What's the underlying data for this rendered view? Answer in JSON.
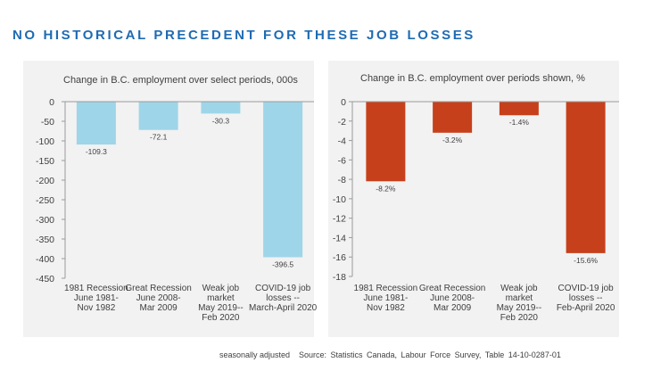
{
  "slide_title": "NO HISTORICAL PRECEDENT FOR THESE JOB LOSSES",
  "footer": {
    "note": "seasonally  adjusted",
    "source": "Source: Statistics Canada, Labour Force Survey, Table 14-10-0287-01"
  },
  "chart_data": [
    {
      "type": "bar",
      "title": "Change in B.C. employment over select periods, 000s",
      "categories": [
        [
          "1981 Recession",
          "June 1981-",
          "Nov 1982"
        ],
        [
          "Great Recession",
          "June 2008-",
          "Mar 2009"
        ],
        [
          "Weak job",
          "market",
          "May 2019--",
          "Feb 2020"
        ],
        [
          "COVID-19 job",
          "losses --",
          "March-April 2020"
        ]
      ],
      "values": [
        -109.3,
        -72.1,
        -30.3,
        -396.5
      ],
      "data_labels": [
        "-109.3",
        "-72.1",
        "-30.3",
        "-396.5"
      ],
      "ylim": [
        -450,
        0
      ],
      "yticks": [
        0,
        -50,
        -100,
        -150,
        -200,
        -250,
        -300,
        -350,
        -400,
        -450
      ],
      "ytick_labels": [
        "0",
        "-50",
        "-100",
        "-150",
        "-200",
        "-250",
        "-300",
        "-350",
        "-400",
        "-450"
      ],
      "xlabel": "",
      "ylabel": "",
      "color": "#9fd5e8",
      "grid": false
    },
    {
      "type": "bar",
      "title": "Change in B.C. employment over periods shown, %",
      "categories": [
        [
          "1981 Recession",
          "June 1981-",
          "Nov 1982"
        ],
        [
          "Great Recession",
          "June 2008-",
          "Mar 2009"
        ],
        [
          "Weak job",
          "market",
          "May 2019--",
          "Feb 2020"
        ],
        [
          "COVID-19 job",
          "losses --",
          "Feb-April 2020"
        ]
      ],
      "values": [
        -8.2,
        -3.2,
        -1.4,
        -15.6
      ],
      "data_labels": [
        "-8.2%",
        "-3.2%",
        "-1.4%",
        "-15.6%"
      ],
      "ylim": [
        -18,
        0
      ],
      "yticks": [
        0,
        -2,
        -4,
        -6,
        -8,
        -10,
        -12,
        -14,
        -16,
        -18
      ],
      "ytick_labels": [
        "0",
        "-2",
        "-4",
        "-6",
        "-8",
        "-10",
        "-12",
        "-14",
        "-16",
        "-18"
      ],
      "xlabel": "",
      "ylabel": "",
      "color": "#c7401c",
      "grid": false
    }
  ]
}
